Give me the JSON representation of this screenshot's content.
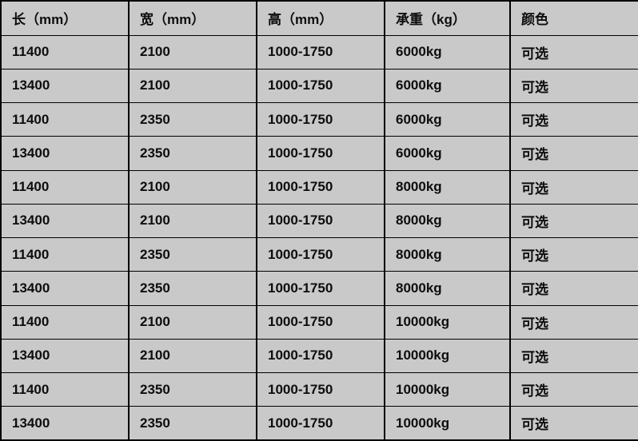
{
  "table": {
    "headers": [
      "长（mm）",
      "宽（mm）",
      "高（mm）",
      "承重（kg）",
      "颜色"
    ],
    "rows": [
      [
        "11400",
        "2100",
        "1000-1750",
        "6000kg",
        "可选"
      ],
      [
        "13400",
        "2100",
        "1000-1750",
        "6000kg",
        "可选"
      ],
      [
        "11400",
        "2350",
        "1000-1750",
        "6000kg",
        "可选"
      ],
      [
        "13400",
        "2350",
        "1000-1750",
        "6000kg",
        "可选"
      ],
      [
        "11400",
        "2100",
        "1000-1750",
        "8000kg",
        "可选"
      ],
      [
        "13400",
        "2100",
        "1000-1750",
        "8000kg",
        "可选"
      ],
      [
        "11400",
        "2350",
        "1000-1750",
        "8000kg",
        "可选"
      ],
      [
        "13400",
        "2350",
        "1000-1750",
        "8000kg",
        "可选"
      ],
      [
        "11400",
        "2100",
        "1000-1750",
        "10000kg",
        "可选"
      ],
      [
        "13400",
        "2100",
        "1000-1750",
        "10000kg",
        "可选"
      ],
      [
        "11400",
        "2350",
        "1000-1750",
        "10000kg",
        "可选"
      ],
      [
        "13400",
        "2350",
        "1000-1750",
        "10000kg",
        "可选"
      ]
    ]
  },
  "chart_data": {
    "type": "table",
    "title": "",
    "columns": [
      "长（mm）",
      "宽（mm）",
      "高（mm）",
      "承重（kg）",
      "颜色"
    ],
    "rows": [
      [
        "11400",
        "2100",
        "1000-1750",
        "6000kg",
        "可选"
      ],
      [
        "13400",
        "2100",
        "1000-1750",
        "6000kg",
        "可选"
      ],
      [
        "11400",
        "2350",
        "1000-1750",
        "6000kg",
        "可选"
      ],
      [
        "13400",
        "2350",
        "1000-1750",
        "6000kg",
        "可选"
      ],
      [
        "11400",
        "2100",
        "1000-1750",
        "8000kg",
        "可选"
      ],
      [
        "13400",
        "2100",
        "1000-1750",
        "8000kg",
        "可选"
      ],
      [
        "11400",
        "2350",
        "1000-1750",
        "8000kg",
        "可选"
      ],
      [
        "13400",
        "2350",
        "1000-1750",
        "8000kg",
        "可选"
      ],
      [
        "11400",
        "2100",
        "1000-1750",
        "10000kg",
        "可选"
      ],
      [
        "13400",
        "2100",
        "1000-1750",
        "10000kg",
        "可选"
      ],
      [
        "11400",
        "2350",
        "1000-1750",
        "10000kg",
        "可选"
      ],
      [
        "13400",
        "2350",
        "1000-1750",
        "10000kg",
        "可选"
      ]
    ],
    "length_values_mm": [
      11400,
      13400
    ],
    "width_values_mm": [
      2100,
      2350
    ],
    "height_range_mm": [
      1000,
      1750
    ],
    "load_capacities_kg": [
      6000,
      8000,
      10000
    ],
    "color_option": "可选"
  },
  "colors": {
    "background": "#c9c9c9",
    "border": "#000000",
    "text": "#0d0d0d"
  }
}
